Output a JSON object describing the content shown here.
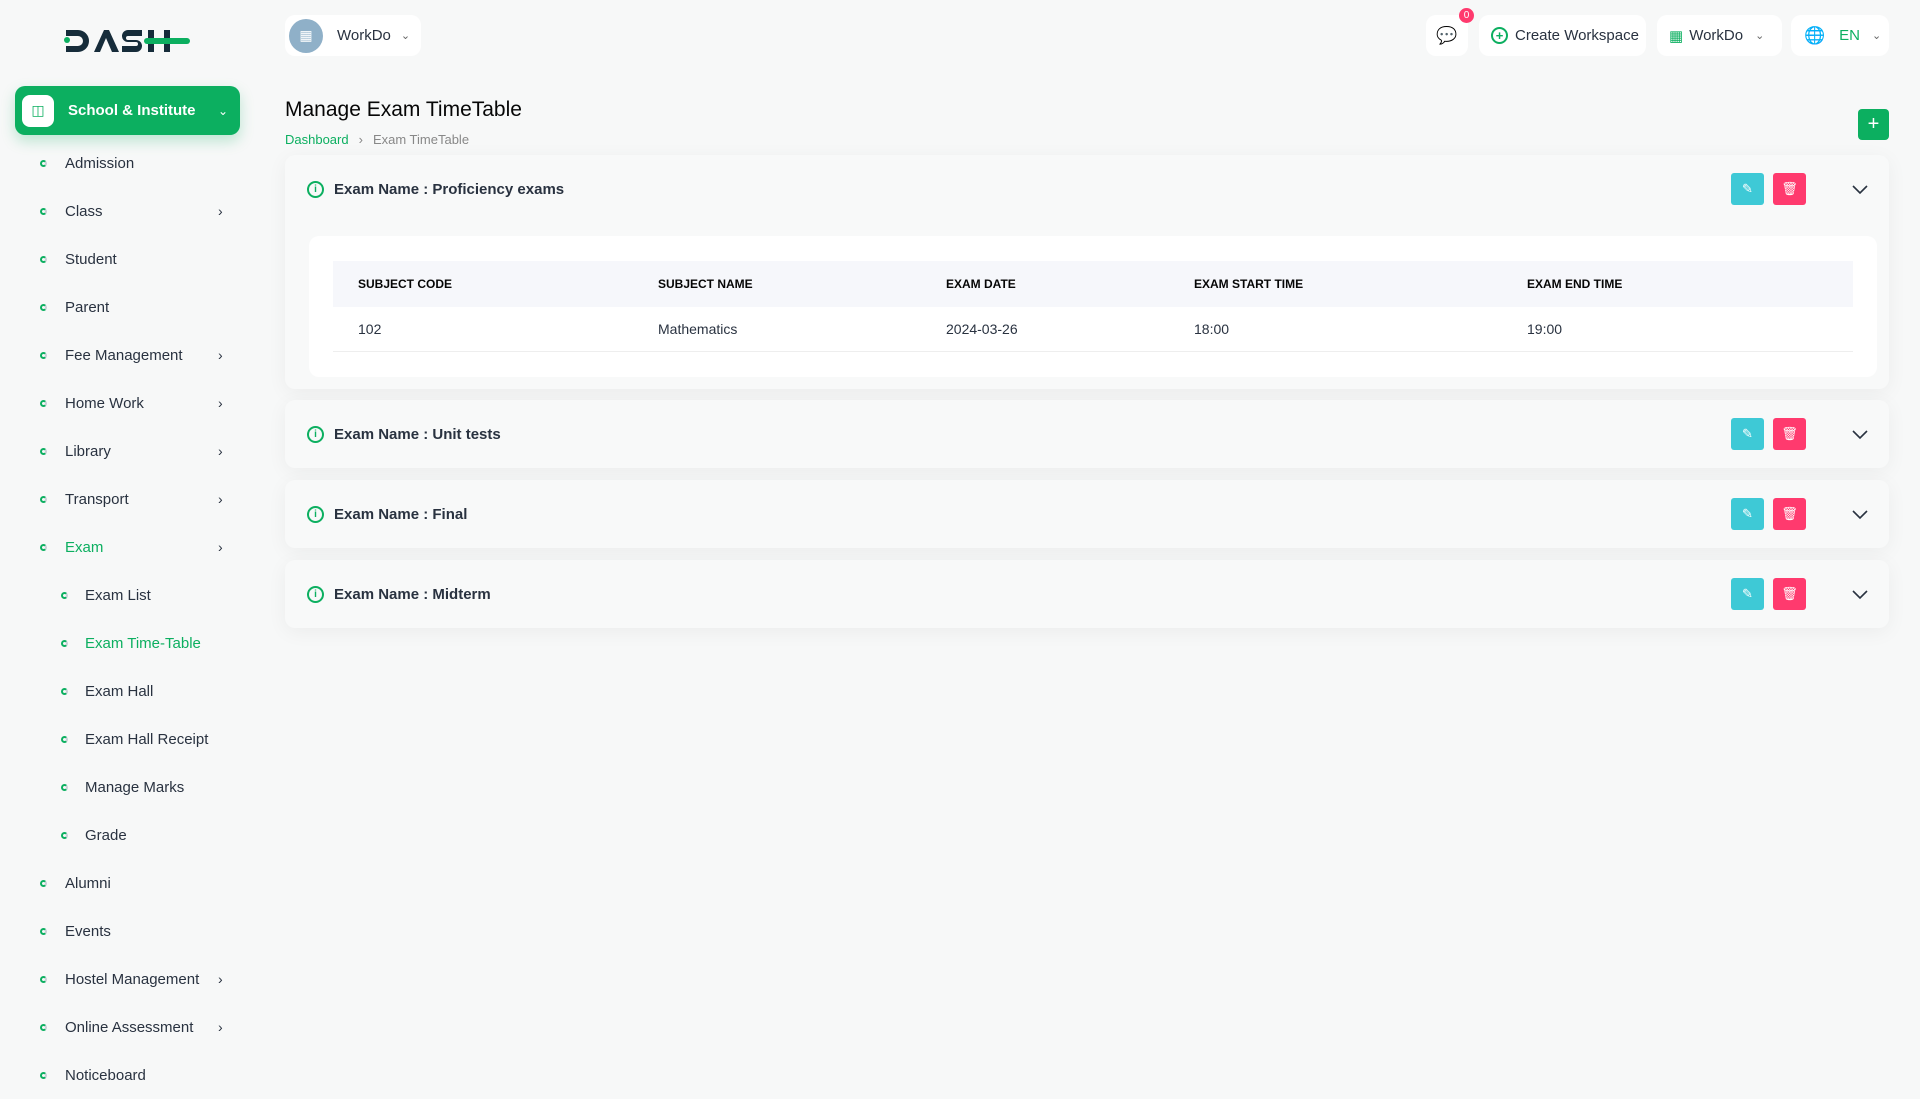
{
  "brand": {
    "logo_text": "DASH"
  },
  "header": {
    "workspace": "WorkDo",
    "chat_badge": "0",
    "create_workspace": "Create Workspace",
    "company": "WorkDo",
    "language": "EN"
  },
  "sidebar": {
    "module": "School & Institute",
    "items": [
      {
        "label": "Admission"
      },
      {
        "label": "Class",
        "arrow": true
      },
      {
        "label": "Student"
      },
      {
        "label": "Parent"
      },
      {
        "label": "Fee Management",
        "arrow": true
      },
      {
        "label": "Home Work",
        "arrow": true
      },
      {
        "label": "Library",
        "arrow": true
      },
      {
        "label": "Transport",
        "arrow": true
      },
      {
        "label": "Exam",
        "arrow": true,
        "active": true
      },
      {
        "label": "Exam List",
        "sub": true
      },
      {
        "label": "Exam Time-Table",
        "sub": true,
        "active": true
      },
      {
        "label": "Exam Hall",
        "sub": true
      },
      {
        "label": "Exam Hall Receipt",
        "sub": true
      },
      {
        "label": "Manage Marks",
        "sub": true
      },
      {
        "label": "Grade",
        "sub": true
      },
      {
        "label": "Alumni"
      },
      {
        "label": "Events"
      },
      {
        "label": "Hostel Management",
        "arrow": true
      },
      {
        "label": "Online Assessment",
        "arrow": true
      },
      {
        "label": "Noticeboard"
      }
    ]
  },
  "page": {
    "title": "Manage Exam TimeTable",
    "breadcrumb": [
      "Dashboard",
      "Exam TimeTable"
    ]
  },
  "table": {
    "columns": [
      "SUBJECT CODE",
      "SUBJECT NAME",
      "EXAM DATE",
      "EXAM START TIME",
      "EXAM END TIME"
    ]
  },
  "exams": [
    {
      "name": "Exam Name : Proficiency exams",
      "expanded": true,
      "rows": [
        [
          "102",
          "Mathematics",
          "2024-03-26",
          "18:00",
          "19:00"
        ]
      ]
    },
    {
      "name": "Exam Name : Unit tests",
      "expanded": false
    },
    {
      "name": "Exam Name : Final",
      "expanded": false
    },
    {
      "name": "Exam Name : Midterm",
      "expanded": false
    }
  ],
  "colors": {
    "primary": "#0caf60",
    "edit": "#3ec9d6",
    "delete": "#ff3a6e"
  }
}
